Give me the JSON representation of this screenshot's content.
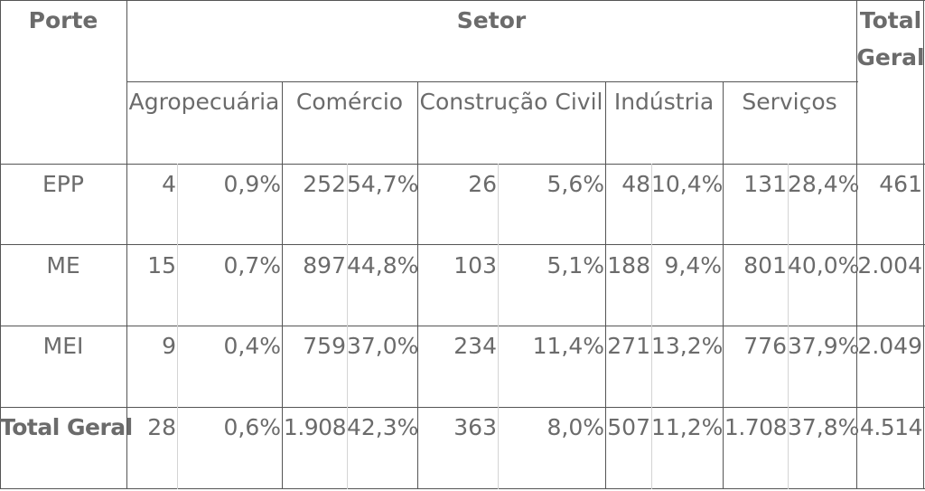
{
  "header": {
    "porte": "Porte",
    "setor": "Setor",
    "total_geral": [
      "Total",
      "Geral"
    ],
    "sectors": [
      "Agropecuária",
      "Comércio",
      "Construção Civil",
      "Indústria",
      "Serviços"
    ]
  },
  "rows": [
    {
      "porte": "EPP",
      "cells": [
        "4",
        "0,9%",
        "252",
        "54,7%",
        "26",
        "5,6%",
        "48",
        "10,4%",
        "131",
        "28,4%"
      ],
      "total": "461"
    },
    {
      "porte": "ME",
      "cells": [
        "15",
        "0,7%",
        "897",
        "44,8%",
        "103",
        "5,1%",
        "188",
        "9,4%",
        "801",
        "40,0%"
      ],
      "total": "2.004"
    },
    {
      "porte": "MEI",
      "cells": [
        "9",
        "0,4%",
        "759",
        "37,0%",
        "234",
        "11,4%",
        "271",
        "13,2%",
        "776",
        "37,9%"
      ],
      "total": "2.049"
    },
    {
      "porte": "Total Geral",
      "cells": [
        "28",
        "0,6%",
        "1.908",
        "42,3%",
        "363",
        "8,0%",
        "507",
        "11,2%",
        "1.708",
        "37,8%"
      ],
      "total": "4.514"
    }
  ]
}
